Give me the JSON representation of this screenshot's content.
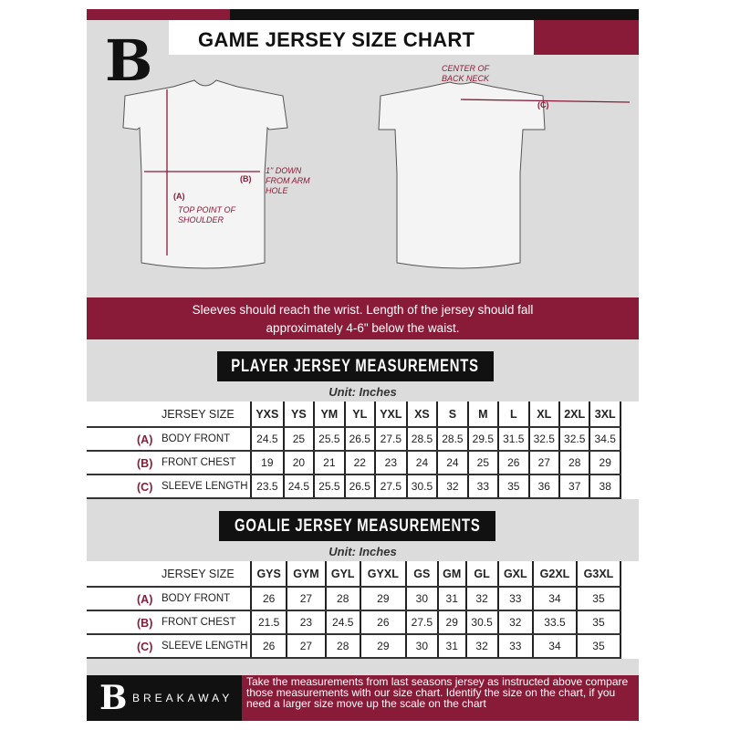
{
  "header": {
    "title": "GAME JERSEY SIZE CHART",
    "logo": "B",
    "brand_color": "#8a1b38"
  },
  "diagram": {
    "center_back_neck": "CENTER OF BACK NECK",
    "one_inch_down": "1\" DOWN FROM ARM HOLE",
    "top_point": "TOP POINT OF SHOULDER",
    "label_a": "(A)",
    "label_b": "(B)",
    "label_c": "(C)"
  },
  "banner": {
    "line1": "Sleeves should reach the wrist. Length of the jersey should fall",
    "line2": "approximately 4-6\" below the waist."
  },
  "player": {
    "title": "PLAYER JERSEY MEASUREMENTS",
    "unit": "Unit: Inches",
    "size_label": "JERSEY SIZE",
    "sizes": [
      "YXS",
      "YS",
      "YM",
      "YL",
      "YXL",
      "XS",
      "S",
      "M",
      "L",
      "XL",
      "2XL",
      "3XL"
    ],
    "rows": [
      {
        "key": "(A)",
        "label": "BODY FRONT",
        "values": [
          "24.5",
          "25",
          "25.5",
          "26.5",
          "27.5",
          "28.5",
          "28.5",
          "29.5",
          "31.5",
          "32.5",
          "32.5",
          "34.5"
        ]
      },
      {
        "key": "(B)",
        "label": "FRONT CHEST",
        "values": [
          "19",
          "20",
          "21",
          "22",
          "23",
          "24",
          "24",
          "25",
          "26",
          "27",
          "28",
          "29"
        ]
      },
      {
        "key": "(C)",
        "label": "SLEEVE LENGTH",
        "values": [
          "23.5",
          "24.5",
          "25.5",
          "26.5",
          "27.5",
          "30.5",
          "32",
          "33",
          "35",
          "36",
          "37",
          "38"
        ]
      }
    ]
  },
  "goalie": {
    "title": "GOALIE JERSEY MEASUREMENTS",
    "unit": "Unit: Inches",
    "size_label": "JERSEY SIZE",
    "sizes": [
      "GYS",
      "GYM",
      "GYL",
      "GYXL",
      "GS",
      "GM",
      "GL",
      "GXL",
      "G2XL",
      "G3XL"
    ],
    "rows": [
      {
        "key": "(A)",
        "label": "BODY FRONT",
        "values": [
          "26",
          "27",
          "28",
          "29",
          "30",
          "31",
          "32",
          "33",
          "34",
          "35"
        ]
      },
      {
        "key": "(B)",
        "label": "FRONT CHEST",
        "values": [
          "21.5",
          "23",
          "24.5",
          "26",
          "27.5",
          "29",
          "30.5",
          "32",
          "33.5",
          "35"
        ]
      },
      {
        "key": "(C)",
        "label": "SLEEVE LENGTH",
        "values": [
          "26",
          "27",
          "28",
          "29",
          "30",
          "31",
          "32",
          "33",
          "34",
          "35"
        ]
      }
    ]
  },
  "footer": {
    "brand": "BREAKAWAY",
    "text": "Take the measurements from last seasons jersey as instructed above compare those measurements  with our size chart. Identify the size on the chart, if you need a larger size move up the scale on the chart"
  }
}
